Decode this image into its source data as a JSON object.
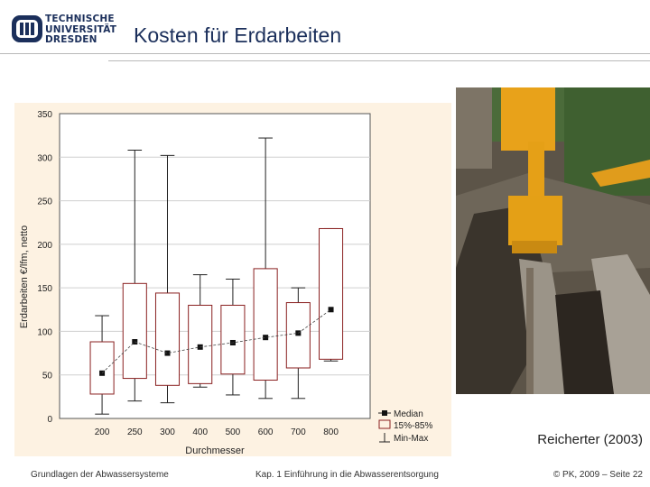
{
  "header": {
    "logo_lines": [
      "TECHNISCHE",
      "UNIVERSITÄT",
      "DRESDEN"
    ],
    "title": "Kosten für Erdarbeiten"
  },
  "photo": {
    "credit": "Reicherter (2003)"
  },
  "footer": {
    "left": "Grundlagen der Abwassersysteme",
    "center": "Kap. 1  Einführung in die Abwasserentsorgung",
    "right": "© PK, 2009 – Seite 22"
  },
  "colors": {
    "accent": "#1b2f5b",
    "box": "#8a2020",
    "chart_bg": "#fdf2e2"
  },
  "chart_data": {
    "type": "box",
    "title": "",
    "xlabel": "Durchmesser",
    "ylabel": "Erdarbeiten €/lfm, netto",
    "ylim": [
      0,
      350
    ],
    "yticks": [
      0,
      50,
      100,
      150,
      200,
      250,
      300,
      350
    ],
    "grid": true,
    "legend_position": "bottom-right",
    "legend": [
      "Median",
      "15%-85%",
      "Min-Max"
    ],
    "categories": [
      "200",
      "250",
      "300",
      "400",
      "500",
      "600",
      "700",
      "800"
    ],
    "boxes": [
      {
        "x": "200",
        "min": 5,
        "q15": 28,
        "median": 52,
        "q85": 88,
        "max": 118
      },
      {
        "x": "250",
        "min": 20,
        "q15": 46,
        "median": 88,
        "q85": 155,
        "max": 308
      },
      {
        "x": "300",
        "min": 18,
        "q15": 38,
        "median": 75,
        "q85": 144,
        "max": 302
      },
      {
        "x": "400",
        "min": 36,
        "q15": 40,
        "median": 82,
        "q85": 130,
        "max": 165
      },
      {
        "x": "500",
        "min": 27,
        "q15": 51,
        "median": 87,
        "q85": 130,
        "max": 160
      },
      {
        "x": "600",
        "min": 23,
        "q15": 44,
        "median": 93,
        "q85": 172,
        "max": 322
      },
      {
        "x": "700",
        "min": 23,
        "q15": 58,
        "median": 98,
        "q85": 133,
        "max": 150
      },
      {
        "x": "800",
        "min": 66,
        "q15": 68,
        "median": 125,
        "q85": 218,
        "max": 218
      }
    ]
  }
}
